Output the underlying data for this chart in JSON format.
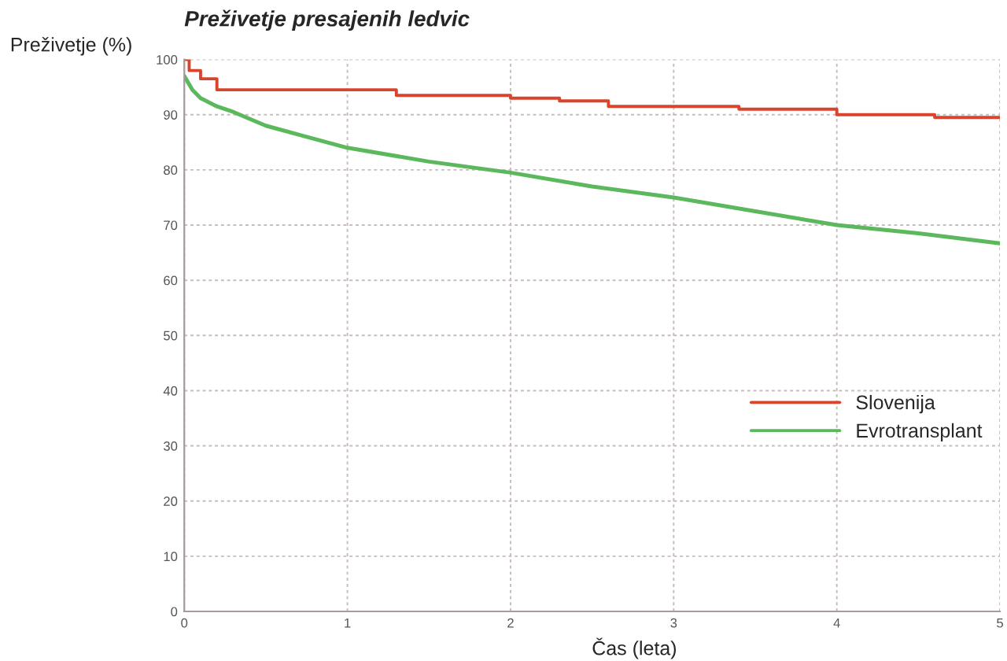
{
  "chart_data": {
    "type": "line",
    "title": "Preživetje presajenih ledvic",
    "xlabel": "Čas (leta)",
    "ylabel": "Preživetje (%)",
    "series": [
      {
        "name": "Slovenija",
        "color": "#d9442c",
        "type": "step",
        "x": [
          0,
          0.03,
          0.1,
          0.2,
          1.0,
          1.3,
          2.0,
          2.3,
          2.6,
          3.4,
          4.0,
          4.6,
          5.0
        ],
        "values": [
          100,
          98,
          96.5,
          94.5,
          94.5,
          93.5,
          93,
          92.5,
          91.5,
          91,
          90,
          89.5,
          89.5
        ]
      },
      {
        "name": "Evrotransplant",
        "color": "#5cb85c",
        "x": [
          0,
          0.05,
          0.1,
          0.2,
          0.3,
          0.5,
          0.75,
          1,
          1.5,
          2,
          2.5,
          3,
          3.5,
          4,
          4.5,
          5
        ],
        "values": [
          97,
          94.5,
          93,
          91.5,
          90.5,
          88,
          86,
          84,
          81.5,
          79.5,
          77,
          75,
          72.5,
          70,
          68.5,
          66.7
        ]
      }
    ],
    "xlim": [
      0,
      5
    ],
    "xticks": [
      0,
      1,
      2,
      3,
      4,
      5
    ],
    "ylim": [
      0,
      100
    ],
    "yticks": [
      0,
      10,
      20,
      30,
      40,
      50,
      60,
      70,
      80,
      90,
      100
    ],
    "grid": true,
    "legend": "right",
    "line_style": "solid",
    "marker": "none"
  }
}
